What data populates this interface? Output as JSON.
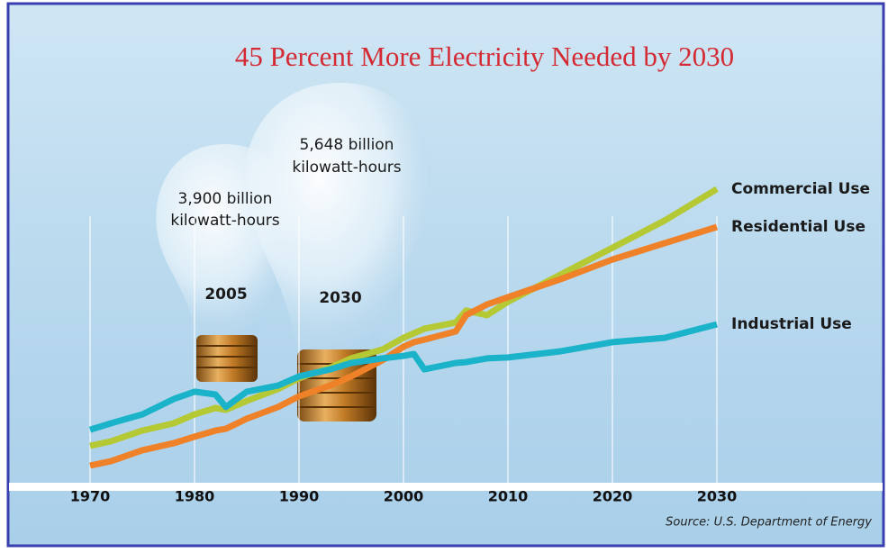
{
  "chart_data": {
    "type": "line",
    "title": "45 Percent More Electricity Needed by 2030",
    "annotations": [
      {
        "lines": [
          "3,900 billion",
          "kilowatt-hours"
        ],
        "year": "2005"
      },
      {
        "lines": [
          "5,648 billion",
          "kilowatt-hours"
        ],
        "year": "2030"
      }
    ],
    "source": "Source: U.S. Department of Energy",
    "x": [
      1970,
      1972,
      1975,
      1978,
      1980,
      1982,
      1983,
      1985,
      1988,
      1990,
      1993,
      1995,
      1998,
      2000,
      2001,
      2002,
      2005,
      2006,
      2008,
      2010,
      2015,
      2020,
      2025,
      2030
    ],
    "xlim": [
      1970,
      2030
    ],
    "xticks": [
      1970,
      1980,
      1990,
      2000,
      2010,
      2020,
      2030
    ],
    "ylim": [
      0,
      100
    ],
    "grid": true,
    "series": [
      {
        "name": "Commercial Use",
        "color": "#b5c935",
        "values": [
          13.2,
          14.7,
          18.2,
          20.6,
          23.5,
          25.6,
          25.0,
          27.9,
          31.8,
          35.3,
          38.8,
          41.8,
          44.7,
          48.5,
          50.0,
          51.5,
          53.5,
          57.4,
          55.9,
          60.3,
          69.1,
          77.9,
          86.8,
          97.1
        ]
      },
      {
        "name": "Residential Use",
        "color": "#ef8128",
        "values": [
          6.8,
          8.2,
          11.8,
          14.1,
          16.2,
          18.2,
          18.8,
          22.1,
          25.9,
          29.4,
          32.9,
          35.9,
          41.2,
          45.6,
          47.1,
          47.9,
          50.6,
          55.9,
          59.4,
          61.8,
          67.6,
          74.1,
          79.4,
          84.7
        ]
      },
      {
        "name": "Industrial Use",
        "color": "#1bb3c9",
        "values": [
          18.5,
          20.6,
          23.5,
          28.5,
          30.9,
          30.0,
          25.9,
          30.9,
          32.9,
          35.9,
          38.2,
          40.3,
          41.8,
          42.6,
          43.2,
          38.2,
          40.3,
          40.6,
          41.8,
          42.1,
          44.1,
          47.1,
          48.5,
          52.9
        ]
      }
    ]
  }
}
